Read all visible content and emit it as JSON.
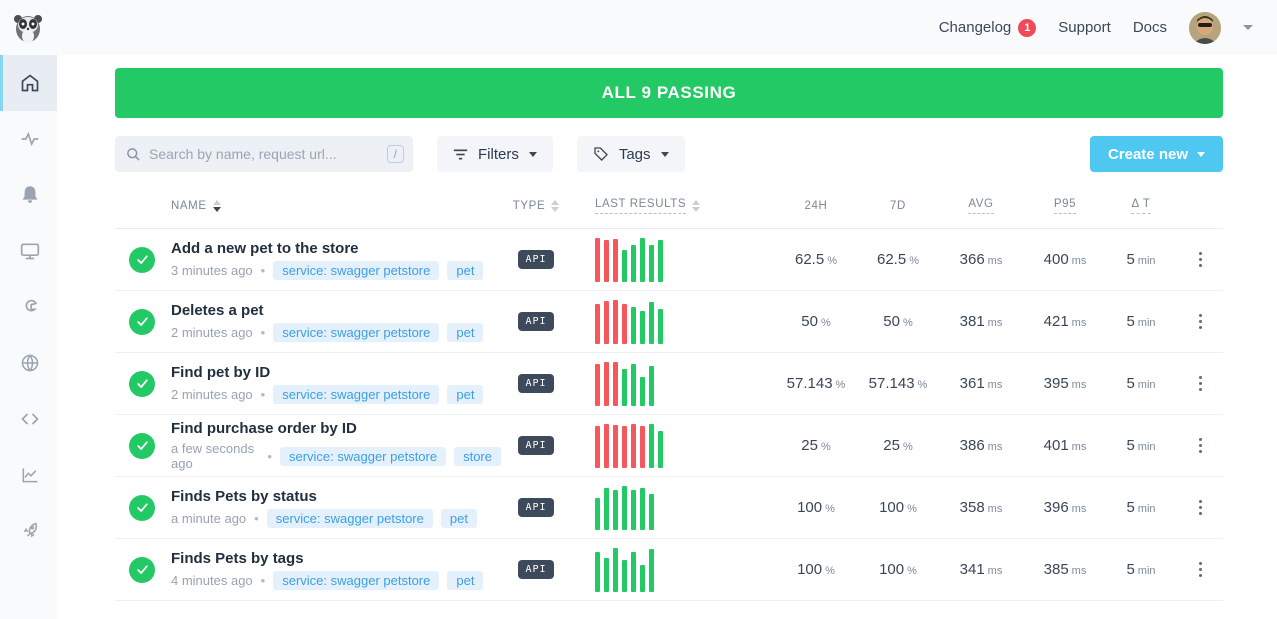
{
  "header": {
    "changelog_label": "Changelog",
    "changelog_badge": "1",
    "support_label": "Support",
    "docs_label": "Docs"
  },
  "sidebar": {
    "items": [
      {
        "icon": "home-icon",
        "active": true
      },
      {
        "icon": "activity-icon",
        "active": false
      },
      {
        "icon": "bell-icon",
        "active": false
      },
      {
        "icon": "monitor-icon",
        "active": false
      },
      {
        "icon": "wrench-icon",
        "active": false
      },
      {
        "icon": "globe-icon",
        "active": false
      },
      {
        "icon": "code-icon",
        "active": false
      },
      {
        "icon": "chart-icon",
        "active": false
      },
      {
        "icon": "rocket-icon",
        "active": false
      }
    ]
  },
  "banner": {
    "text": "ALL 9 PASSING",
    "color": "#23c965"
  },
  "toolbar": {
    "search_placeholder": "Search by name, request url...",
    "search_shortcut": "/",
    "filters_label": "Filters",
    "tags_label": "Tags",
    "create_new_label": "Create new",
    "create_new_color": "#4ec8f0"
  },
  "table": {
    "columns": {
      "name": "NAME",
      "type": "TYPE",
      "last_results": "LAST RESULTS",
      "h24": "24H",
      "d7": "7D",
      "avg": "AVG",
      "p95": "P95",
      "dt": "Δ T"
    },
    "status_colors": {
      "pass": "#23c965",
      "fail": "#f4575c"
    },
    "rows": [
      {
        "name": "Add a new pet to the store",
        "time": "3 minutes ago",
        "tags": [
          "service: swagger petstore",
          "pet"
        ],
        "type": "API",
        "results": [
          [
            "r",
            1.0
          ],
          [
            "r",
            0.95
          ],
          [
            "r",
            0.97
          ],
          [
            "g",
            0.72
          ],
          [
            "g",
            0.83
          ],
          [
            "g",
            1.0
          ],
          [
            "g",
            0.85
          ],
          [
            "g",
            0.95
          ]
        ],
        "h24": {
          "v": "62.5",
          "u": "%"
        },
        "d7": {
          "v": "62.5",
          "u": "%"
        },
        "avg": {
          "v": "366",
          "u": "ms"
        },
        "p95": {
          "v": "400",
          "u": "ms"
        },
        "dt": {
          "v": "5",
          "u": "min"
        }
      },
      {
        "name": "Deletes a pet",
        "time": "2 minutes ago",
        "tags": [
          "service: swagger petstore",
          "pet"
        ],
        "type": "API",
        "results": [
          [
            "r",
            0.9
          ],
          [
            "r",
            0.97
          ],
          [
            "r",
            1.0
          ],
          [
            "r",
            0.9
          ],
          [
            "g",
            0.85
          ],
          [
            "g",
            0.75
          ],
          [
            "g",
            0.95
          ],
          [
            "g",
            0.8
          ]
        ],
        "h24": {
          "v": "50",
          "u": "%"
        },
        "d7": {
          "v": "50",
          "u": "%"
        },
        "avg": {
          "v": "381",
          "u": "ms"
        },
        "p95": {
          "v": "421",
          "u": "ms"
        },
        "dt": {
          "v": "5",
          "u": "min"
        }
      },
      {
        "name": "Find pet by ID",
        "time": "2 minutes ago",
        "tags": [
          "service: swagger petstore",
          "pet"
        ],
        "type": "API",
        "results": [
          [
            "r",
            0.95
          ],
          [
            "r",
            1.0
          ],
          [
            "r",
            1.0
          ],
          [
            "g",
            0.85
          ],
          [
            "g",
            0.95
          ],
          [
            "g",
            0.65
          ],
          [
            "g",
            0.92
          ]
        ],
        "h24": {
          "v": "57.143",
          "u": "%"
        },
        "d7": {
          "v": "57.143",
          "u": "%"
        },
        "avg": {
          "v": "361",
          "u": "ms"
        },
        "p95": {
          "v": "395",
          "u": "ms"
        },
        "dt": {
          "v": "5",
          "u": "min"
        }
      },
      {
        "name": "Find purchase order by ID",
        "time": "a few seconds ago",
        "tags": [
          "service: swagger petstore",
          "store"
        ],
        "type": "API",
        "results": [
          [
            "r",
            0.95
          ],
          [
            "r",
            1.0
          ],
          [
            "r",
            0.97
          ],
          [
            "r",
            0.95
          ],
          [
            "r",
            1.0
          ],
          [
            "r",
            0.95
          ],
          [
            "g",
            1.0
          ],
          [
            "g",
            0.85
          ]
        ],
        "h24": {
          "v": "25",
          "u": "%"
        },
        "d7": {
          "v": "25",
          "u": "%"
        },
        "avg": {
          "v": "386",
          "u": "ms"
        },
        "p95": {
          "v": "401",
          "u": "ms"
        },
        "dt": {
          "v": "5",
          "u": "min"
        }
      },
      {
        "name": "Finds Pets by status",
        "time": "a minute ago",
        "tags": [
          "service: swagger petstore",
          "pet"
        ],
        "type": "API",
        "results": [
          [
            "g",
            0.72
          ],
          [
            "g",
            0.95
          ],
          [
            "g",
            0.9
          ],
          [
            "g",
            1.0
          ],
          [
            "g",
            0.92
          ],
          [
            "g",
            0.95
          ],
          [
            "g",
            0.82
          ]
        ],
        "h24": {
          "v": "100",
          "u": "%"
        },
        "d7": {
          "v": "100",
          "u": "%"
        },
        "avg": {
          "v": "358",
          "u": "ms"
        },
        "p95": {
          "v": "396",
          "u": "ms"
        },
        "dt": {
          "v": "5",
          "u": "min"
        }
      },
      {
        "name": "Finds Pets by tags",
        "time": "4 minutes ago",
        "tags": [
          "service: swagger petstore",
          "pet"
        ],
        "type": "API",
        "results": [
          [
            "g",
            0.92
          ],
          [
            "g",
            0.78
          ],
          [
            "g",
            1.0
          ],
          [
            "g",
            0.72
          ],
          [
            "g",
            0.9
          ],
          [
            "g",
            0.62
          ],
          [
            "g",
            0.97
          ]
        ],
        "h24": {
          "v": "100",
          "u": "%"
        },
        "d7": {
          "v": "100",
          "u": "%"
        },
        "avg": {
          "v": "341",
          "u": "ms"
        },
        "p95": {
          "v": "385",
          "u": "ms"
        },
        "dt": {
          "v": "5",
          "u": "min"
        }
      }
    ]
  }
}
